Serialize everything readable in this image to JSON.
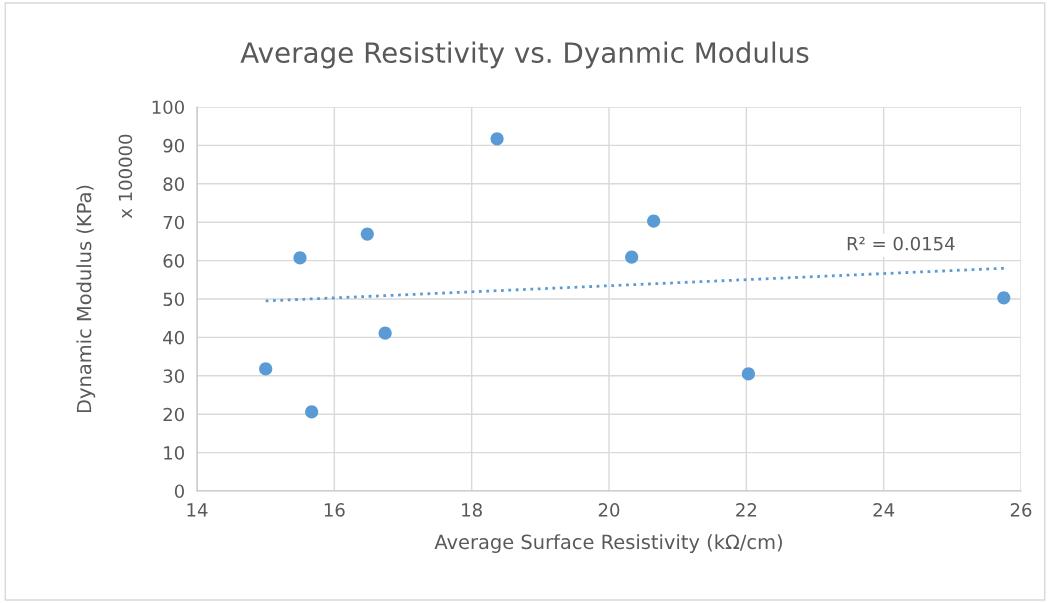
{
  "chart_data": {
    "type": "scatter",
    "title": "Average Resistivity vs. Dyanmic Modulus",
    "xlabel": "Average Surface Resistivity (kΩ/cm)",
    "ylabel": "Dynamic Modulus (KPa)",
    "annotations": [
      "x 100000",
      "R² = 0.0154"
    ],
    "series": [
      {
        "color": "#5b9bd5",
        "marker": "circle",
        "x": [
          15.0,
          15.5,
          15.67,
          16.48,
          16.74,
          18.37,
          20.33,
          20.65,
          22.03,
          25.75
        ],
        "values": [
          31.8,
          60.7,
          20.6,
          66.9,
          41.1,
          91.7,
          60.9,
          70.3,
          30.5,
          50.3
        ]
      },
      {
        "type": "line",
        "color": "#5b9bd5",
        "marker": "none",
        "line_style": "dotted",
        "x": [
          15.0,
          25.75
        ],
        "values": [
          49.5,
          58.0
        ]
      }
    ],
    "xlim": [
      14,
      26
    ],
    "xticks": [
      14,
      16,
      18,
      20,
      22,
      24,
      26
    ],
    "ylim": [
      0,
      100
    ],
    "yticks": [
      0,
      10,
      20,
      30,
      40,
      50,
      60,
      70,
      80,
      90,
      100
    ],
    "grid": true
  }
}
